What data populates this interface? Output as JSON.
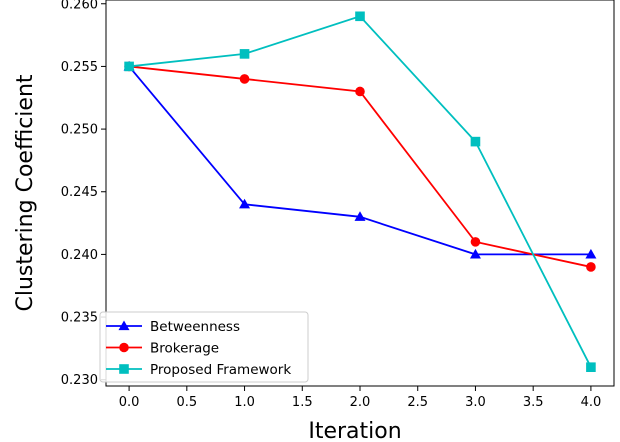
{
  "chart_data": {
    "type": "line",
    "title": "",
    "xlabel": "Iteration",
    "ylabel": "Clustering Coefficient",
    "x": [
      0.0,
      1.0,
      2.0,
      3.0,
      4.0
    ],
    "xlim": [
      -0.2,
      4.2
    ],
    "ylim": [
      0.2295,
      0.2603
    ],
    "xticks": [
      "0.0",
      "0.5",
      "1.0",
      "1.5",
      "2.0",
      "2.5",
      "3.0",
      "3.5",
      "4.0"
    ],
    "xtick_values": [
      0,
      0.5,
      1,
      1.5,
      2,
      2.5,
      3,
      3.5,
      4
    ],
    "yticks": [
      "0.230",
      "0.235",
      "0.240",
      "0.245",
      "0.250",
      "0.255",
      "0.260"
    ],
    "ytick_values": [
      0.23,
      0.235,
      0.24,
      0.245,
      0.25,
      0.255,
      0.26
    ],
    "grid": false,
    "legend_position": "lower-left",
    "series": [
      {
        "name": "Betweenness",
        "color": "#0000ff",
        "marker": "triangle",
        "values": [
          0.255,
          0.244,
          0.243,
          0.24,
          0.24
        ]
      },
      {
        "name": "Brokerage",
        "color": "#ff0000",
        "marker": "circle",
        "values": [
          0.255,
          0.254,
          0.253,
          0.241,
          0.239
        ]
      },
      {
        "name": "Proposed Framework",
        "color": "#00bfbf",
        "marker": "square",
        "values": [
          0.255,
          0.256,
          0.259,
          0.249,
          0.231
        ]
      }
    ]
  }
}
